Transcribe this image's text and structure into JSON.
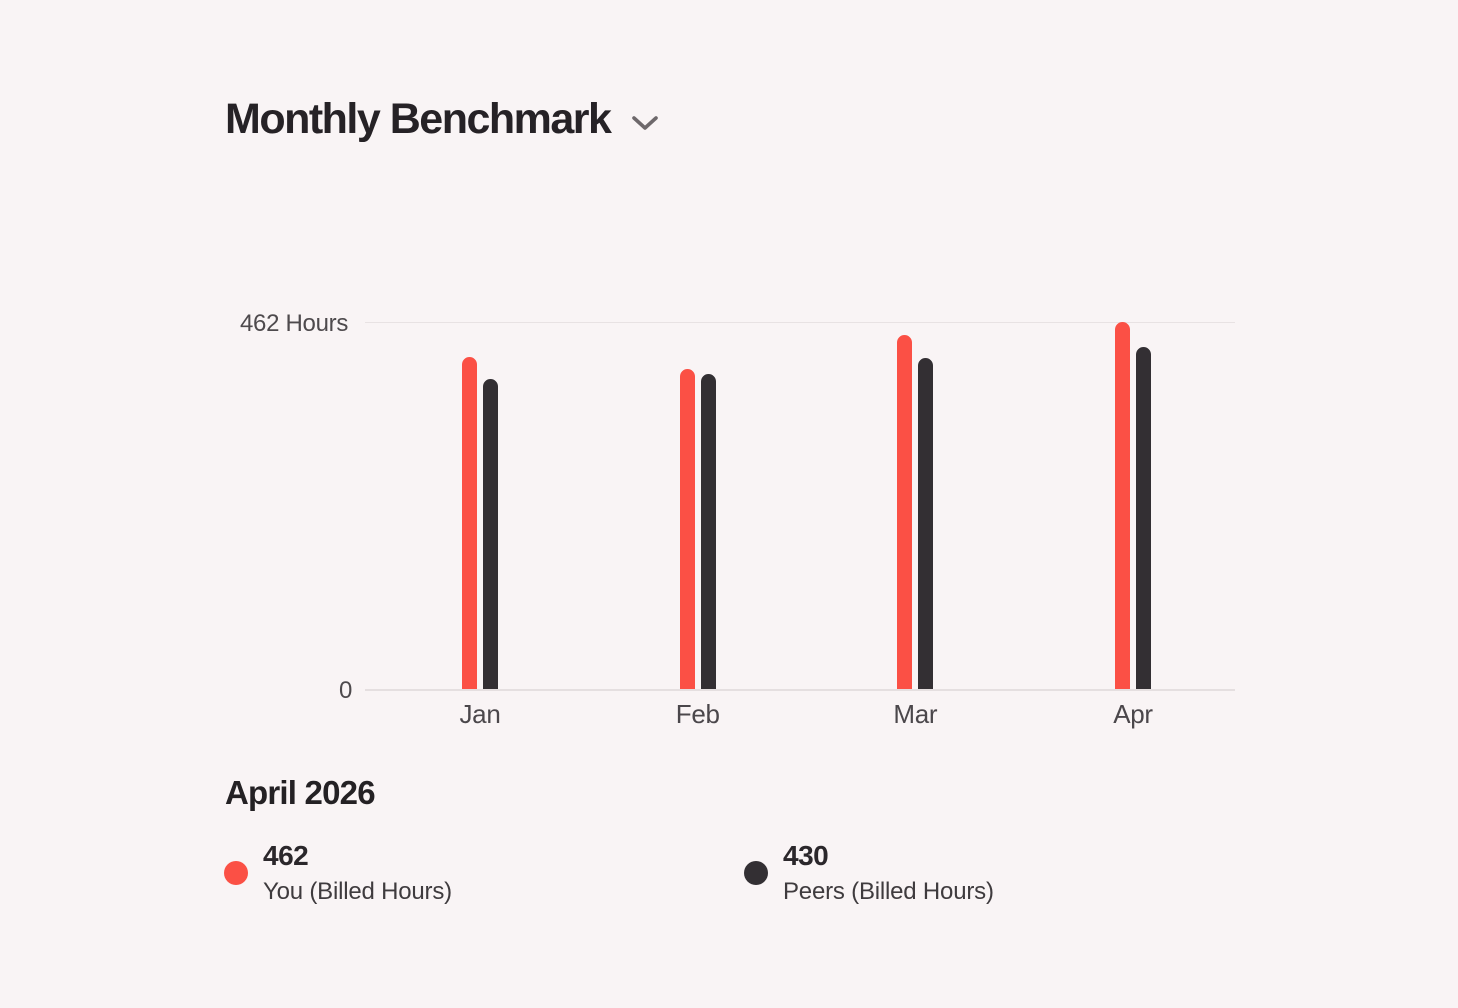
{
  "header": {
    "title": "Monthly Benchmark",
    "chevron_icon": "chevron-down"
  },
  "chart_data": {
    "type": "bar",
    "title": "Monthly Benchmark",
    "categories": [
      "Jan",
      "Feb",
      "Mar",
      "Apr"
    ],
    "series": [
      {
        "name": "You (Billed Hours)",
        "color": "#FB5045",
        "values": [
          418,
          403,
          446,
          462
        ]
      },
      {
        "name": "Peers (Billed Hours)",
        "color": "#332F33",
        "values": [
          390,
          397,
          417,
          430
        ]
      }
    ],
    "ymax": 462,
    "y_axis_top_label": "462 Hours",
    "y_axis_bottom_label": "0",
    "grid": "top line and baseline only",
    "legend_position": "bottom"
  },
  "footer": {
    "period_label": "April 2026",
    "legend": [
      {
        "value": "462",
        "label": "You (Billed Hours)",
        "color": "#FB5045"
      },
      {
        "value": "430",
        "label": "Peers (Billed Hours)",
        "color": "#332F33"
      }
    ]
  },
  "colors": {
    "background": "#F9F4F5",
    "grid": "#E8E2E3",
    "axis_text": "#4E4A4D",
    "title_text": "#262226"
  }
}
